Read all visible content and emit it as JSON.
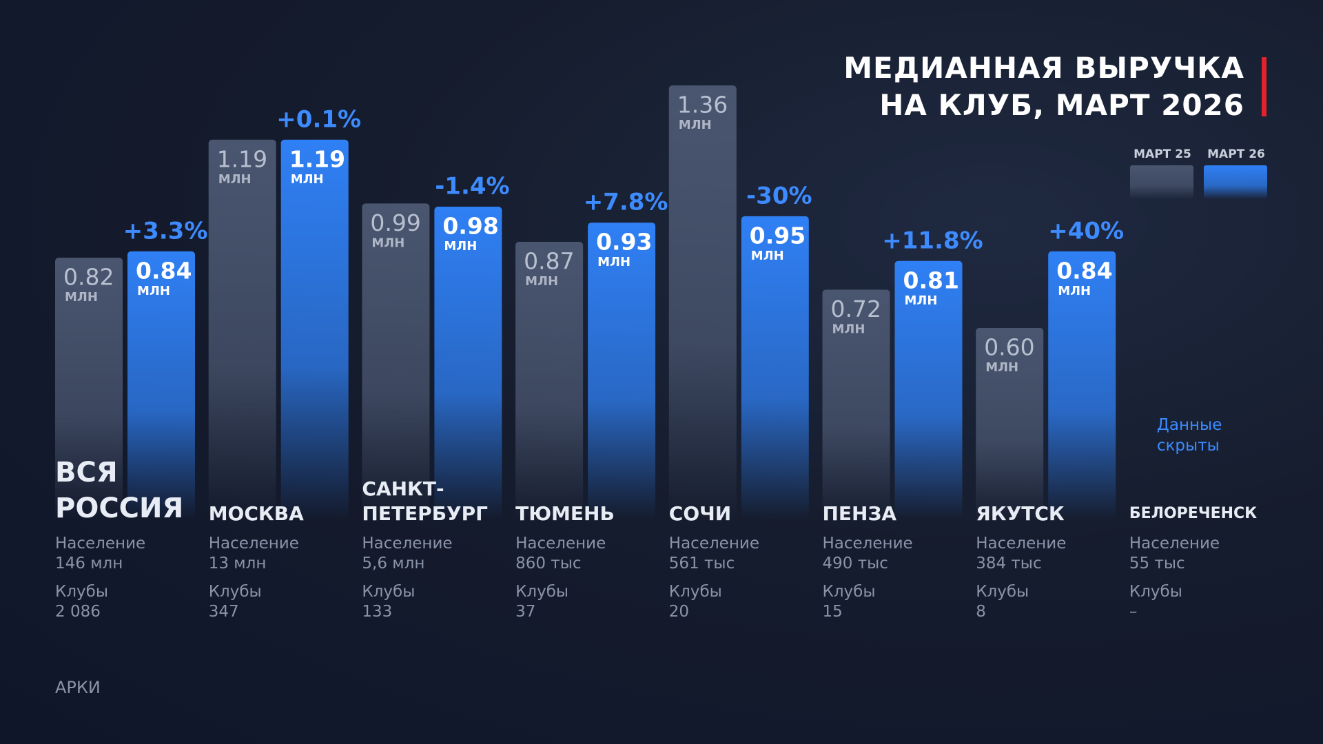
{
  "chart_data": {
    "type": "bar",
    "title": [
      "МЕДИАННАЯ ВЫРУЧКА",
      "НА КЛУБ, МАРТ 2026"
    ],
    "unit": "МЛН",
    "categories": [
      "ВСЯ РОССИЯ",
      "МОСКВА",
      "САНКТ-ПЕТЕРБУРГ",
      "ТЮМЕНЬ",
      "СОЧИ",
      "ПЕНЗА",
      "ЯКУТСК",
      "БЕЛОРЕЧЕНСК"
    ],
    "series": [
      {
        "name": "МАРТ 25",
        "color": "#4a5670",
        "values": [
          0.82,
          1.19,
          0.99,
          0.87,
          1.36,
          0.72,
          0.6,
          null
        ],
        "value_labels": [
          "0.82",
          "1.19",
          "0.99",
          "0.87",
          "1.36",
          "0.72",
          "0.60",
          null
        ]
      },
      {
        "name": "МАРТ 26",
        "color": "#2f80f5",
        "values": [
          0.84,
          1.19,
          0.98,
          0.93,
          0.95,
          0.81,
          0.84,
          null
        ],
        "value_labels": [
          "0.84",
          "1.19",
          "0.98",
          "0.93",
          "0.95",
          "0.81",
          "0.84",
          null
        ]
      }
    ],
    "change_labels": [
      "+3.3%",
      "+0.1%",
      "-1.4%",
      "+7.8%",
      "-30%",
      "+11.8%",
      "+40%",
      null
    ],
    "population_label": "Население",
    "population": [
      "146 млн",
      "13 млн",
      "5,6 млн",
      "860 тыс",
      "561 тыс",
      "490 тыс",
      "384 тыс",
      "55 тыс"
    ],
    "clubs_label": "Клубы",
    "clubs": [
      "2 086",
      "347",
      "133",
      "37",
      "20",
      "15",
      "8",
      "–"
    ],
    "note": "Данные скрыты",
    "source": "АРКИ"
  }
}
